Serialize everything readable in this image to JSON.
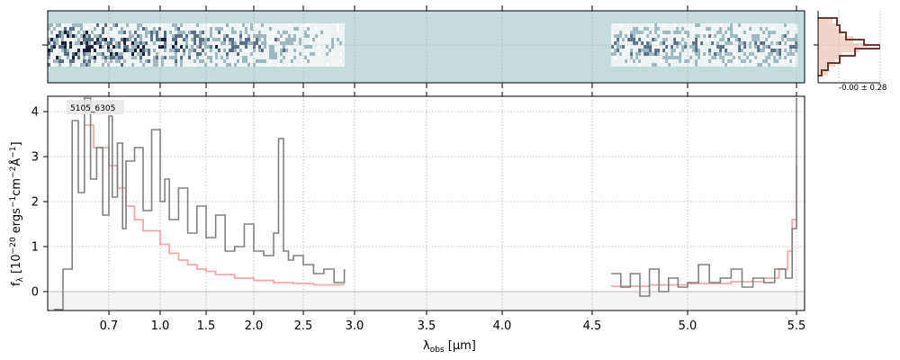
{
  "chart_data": [
    {
      "panel": "2d-spectrum",
      "type": "heatmap",
      "xlim": [
        0.5,
        5.55
      ],
      "background_color": "#c5dcdc",
      "trace_segments": [
        [
          0.5,
          2.9
        ],
        [
          4.6,
          5.5
        ]
      ],
      "grid": true
    },
    {
      "panel": "1d-spectrum",
      "type": "line",
      "annotation": "5105_6305",
      "xlabel_main": "λ",
      "xlabel_sub": "obs",
      "xlabel_unit": " [μm]",
      "ylabel_text": "f_λ [10^-20 ergs^-1 cm^-2 Å^-1]",
      "ylabel_prefix": "f",
      "ylabel_sub": "λ",
      "ylabel_body": "[10",
      "ylabel_exp1": "−20",
      "ylabel_mid1": "ergs",
      "ylabel_exp2": "−1",
      "ylabel_mid2": "cm",
      "ylabel_exp3": "−2",
      "ylabel_mid3": "Å",
      "ylabel_exp4": "−1",
      "ylabel_end": "]",
      "xscale": "custom (wavelength-compressed at short end)",
      "xlim": [
        0.5,
        5.55
      ],
      "ylim": [
        -0.4,
        4.35
      ],
      "x_ticks": [
        0.7,
        1.0,
        1.5,
        2.0,
        2.5,
        3.0,
        3.5,
        4.0,
        4.5,
        5.0,
        5.5
      ],
      "x_tick_labels": [
        "0.7",
        "1.0",
        "1.5",
        "2.0",
        "2.5",
        "3.0",
        "3.5",
        "4.0",
        "4.5",
        "5.0",
        "5.5"
      ],
      "y_ticks": [
        0,
        1,
        2,
        3,
        4
      ],
      "y_tick_labels": [
        "0",
        "1",
        "2",
        "3",
        "4"
      ],
      "grid": true,
      "series": [
        {
          "role": "data",
          "color": "#808080",
          "segments": [
            {
              "x": [
                0.52,
                0.55,
                0.58,
                0.6,
                0.62,
                0.64,
                0.66,
                0.68,
                0.7,
                0.72,
                0.75,
                0.78,
                0.8,
                0.85,
                0.9,
                0.95,
                1.0,
                1.05,
                1.1,
                1.2,
                1.3,
                1.4,
                1.5,
                1.6,
                1.7,
                1.8,
                1.9,
                2.0,
                2.1,
                2.2,
                2.25,
                2.3,
                2.35,
                2.4,
                2.5,
                2.6,
                2.7,
                2.8,
                2.9
              ],
              "y": [
                -0.4,
                0.5,
                3.8,
                2.2,
                4.3,
                2.5,
                3.2,
                1.7,
                3.9,
                2.1,
                3.3,
                1.4,
                2.9,
                3.2,
                1.8,
                3.6,
                2.0,
                2.5,
                1.6,
                2.3,
                1.3,
                1.9,
                1.2,
                1.7,
                0.9,
                1.0,
                1.5,
                0.9,
                0.8,
                1.3,
                3.4,
                0.9,
                0.7,
                0.8,
                0.6,
                0.4,
                0.5,
                0.2,
                0.5
              ]
            },
            {
              "x": [
                4.6,
                4.65,
                4.7,
                4.75,
                4.8,
                4.85,
                4.9,
                4.95,
                5.0,
                5.05,
                5.1,
                5.15,
                5.2,
                5.25,
                5.3,
                5.35,
                5.4,
                5.45,
                5.48,
                5.5
              ],
              "y": [
                0.4,
                0.1,
                0.4,
                -0.1,
                0.5,
                0.0,
                0.3,
                0.1,
                0.2,
                0.6,
                0.2,
                0.3,
                0.5,
                0.1,
                0.3,
                0.2,
                0.5,
                0.3,
                1.4,
                4.3
              ]
            }
          ]
        },
        {
          "role": "model",
          "color": "#f2a8a8",
          "segments": [
            {
              "x": [
                0.62,
                0.65,
                0.7,
                0.75,
                0.8,
                0.85,
                0.9,
                1.0,
                1.1,
                1.2,
                1.3,
                1.4,
                1.5,
                1.6,
                1.8,
                2.0,
                2.2,
                2.4,
                2.6,
                2.8,
                2.9
              ],
              "y": [
                3.7,
                3.2,
                2.8,
                2.3,
                1.9,
                1.6,
                1.35,
                1.05,
                0.85,
                0.7,
                0.6,
                0.5,
                0.45,
                0.38,
                0.3,
                0.25,
                0.2,
                0.18,
                0.15,
                0.15,
                0.15
              ]
            },
            {
              "x": [
                4.6,
                4.8,
                5.0,
                5.2,
                5.35,
                5.42,
                5.46,
                5.48,
                5.5
              ],
              "y": [
                0.12,
                0.15,
                0.18,
                0.22,
                0.3,
                0.5,
                0.9,
                1.6,
                2.8
              ]
            }
          ]
        }
      ]
    },
    {
      "panel": "profile-histogram",
      "type": "line",
      "annotation": "-0.00 ± 0.28",
      "series": [
        {
          "role": "model",
          "color": "#e8b0a0"
        },
        {
          "role": "data",
          "color": "#6b3a30"
        }
      ]
    }
  ]
}
